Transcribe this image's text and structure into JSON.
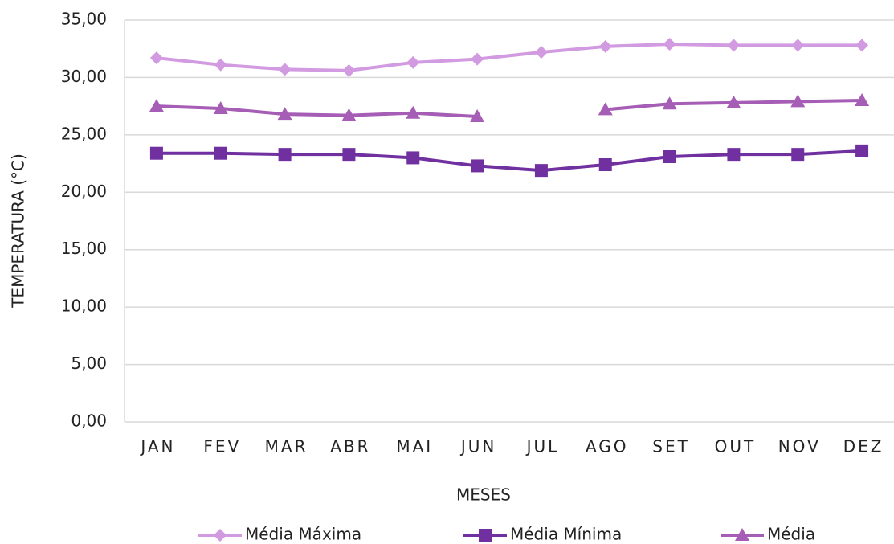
{
  "chart_data": {
    "type": "line",
    "x_label": "MESES",
    "y_label": "TEMPERATURA (°C)",
    "categories": [
      "JAN",
      "FEV",
      "MAR",
      "ABR",
      "MAI",
      "JUN",
      "JUL",
      "AGO",
      "SET",
      "OUT",
      "NOV",
      "DEZ"
    ],
    "series": [
      {
        "name": "Média Máxima",
        "color": "#d29ae0",
        "marker": "diamond",
        "values": [
          31.7,
          31.1,
          30.7,
          30.6,
          31.3,
          31.6,
          32.2,
          32.7,
          32.9,
          32.8,
          32.8,
          32.8
        ]
      },
      {
        "name": "Média Mínima",
        "color": "#7030a0",
        "marker": "square",
        "values": [
          23.4,
          23.4,
          23.3,
          23.3,
          23.0,
          22.3,
          21.9,
          22.4,
          23.1,
          23.3,
          23.3,
          23.6
        ]
      },
      {
        "name": "Média",
        "color": "#a55db5",
        "marker": "triangle",
        "values": [
          27.5,
          27.3,
          26.8,
          26.7,
          26.9,
          26.6,
          null,
          27.2,
          27.7,
          27.8,
          27.9,
          28.0
        ]
      }
    ],
    "ylim": [
      0,
      35
    ],
    "yticks": [
      {
        "value": 0,
        "label": "0,00"
      },
      {
        "value": 5,
        "label": "5,00"
      },
      {
        "value": 10,
        "label": "10,00"
      },
      {
        "value": 15,
        "label": "15,00"
      },
      {
        "value": 20,
        "label": "20,00"
      },
      {
        "value": 25,
        "label": "25,00"
      },
      {
        "value": 30,
        "label": "30,00"
      },
      {
        "value": 35,
        "label": "35,00"
      }
    ],
    "grid": true,
    "legend": "bottom"
  }
}
